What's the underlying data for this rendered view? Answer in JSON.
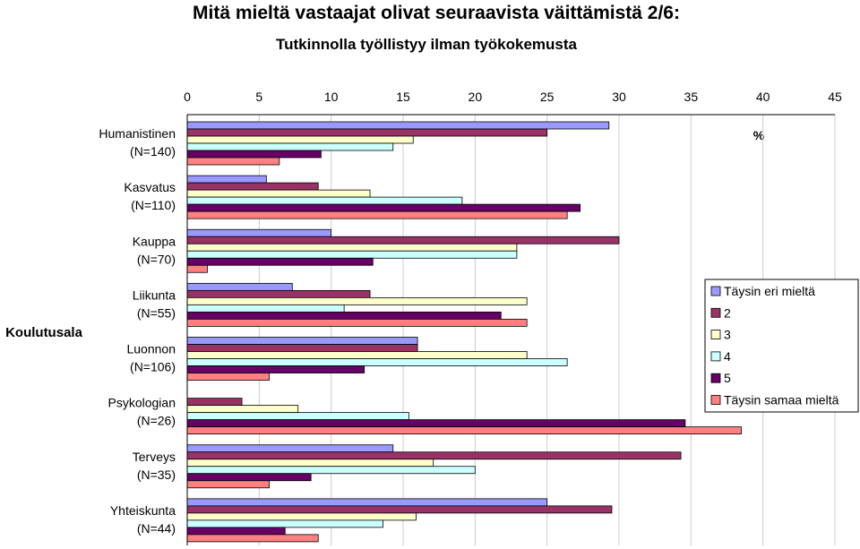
{
  "chart_data": {
    "type": "bar",
    "orientation": "horizontal",
    "title": "Mitä mieltä vastaajat olivat seuraavista väittämistä 2/6:",
    "subtitle": "Tutkinnolla työllistyy ilman työkokemusta",
    "ylabel": "Koulutusala",
    "unit": "%",
    "xlim": [
      0,
      45
    ],
    "xticks": [
      "0",
      "5",
      "10",
      "15",
      "20",
      "25",
      "30",
      "35",
      "40",
      "45"
    ],
    "axis_position": "top",
    "grid": true,
    "legend_position": "right",
    "categories": [
      [
        "Humanistinen",
        "(N=140)"
      ],
      [
        "Kasvatus",
        "(N=110)"
      ],
      [
        "Kauppa",
        "(N=70)"
      ],
      [
        "Liikunta",
        "(N=55)"
      ],
      [
        "Luonnon",
        "(N=106)"
      ],
      [
        "Psykologian",
        "(N=26)"
      ],
      [
        "Terveys",
        "(N=35)"
      ],
      [
        "Yhteiskunta",
        "(N=44)"
      ]
    ],
    "series": [
      {
        "name": "Täysin eri mieltä",
        "color": "#9999ff",
        "values": [
          29.3,
          5.5,
          10.0,
          7.3,
          16.0,
          0.0,
          14.3,
          25.0
        ]
      },
      {
        "name": "2",
        "color": "#993366",
        "values": [
          25.0,
          9.1,
          30.0,
          12.7,
          16.0,
          3.8,
          34.3,
          29.5
        ]
      },
      {
        "name": "3",
        "color": "#ffffcc",
        "values": [
          15.7,
          12.7,
          22.9,
          23.6,
          23.6,
          7.7,
          17.1,
          15.9
        ]
      },
      {
        "name": "4",
        "color": "#ccffff",
        "values": [
          14.3,
          19.1,
          22.9,
          10.9,
          26.4,
          15.4,
          20.0,
          13.6
        ]
      },
      {
        "name": "5",
        "color": "#660066",
        "values": [
          9.3,
          27.3,
          12.9,
          21.8,
          12.3,
          34.6,
          8.6,
          6.8
        ]
      },
      {
        "name": "Täysin samaa mieltä",
        "color": "#ff8080",
        "values": [
          6.4,
          26.4,
          1.4,
          23.6,
          5.7,
          38.5,
          5.7,
          9.1
        ]
      }
    ]
  }
}
